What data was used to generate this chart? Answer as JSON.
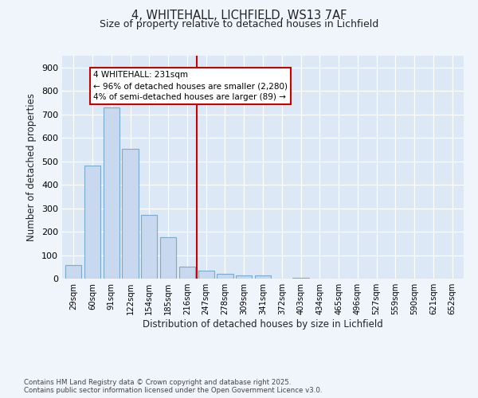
{
  "title1": "4, WHITEHALL, LICHFIELD, WS13 7AF",
  "title2": "Size of property relative to detached houses in Lichfield",
  "xlabel": "Distribution of detached houses by size in Lichfield",
  "ylabel": "Number of detached properties",
  "bar_labels": [
    "29sqm",
    "60sqm",
    "91sqm",
    "122sqm",
    "154sqm",
    "185sqm",
    "216sqm",
    "247sqm",
    "278sqm",
    "309sqm",
    "341sqm",
    "372sqm",
    "403sqm",
    "434sqm",
    "465sqm",
    "496sqm",
    "527sqm",
    "559sqm",
    "590sqm",
    "621sqm",
    "652sqm"
  ],
  "bar_values": [
    57,
    483,
    728,
    554,
    272,
    175,
    50,
    33,
    20,
    13,
    13,
    0,
    5,
    0,
    0,
    0,
    0,
    0,
    0,
    0,
    0
  ],
  "bar_color": "#c8d8ee",
  "bar_edgecolor": "#7aaad0",
  "vline_x": 6.5,
  "vline_color": "#cc0000",
  "annotation_title": "4 WHITEHALL: 231sqm",
  "annotation_line1": "← 96% of detached houses are smaller (2,280)",
  "annotation_line2": "4% of semi-detached houses are larger (89) →",
  "annotation_box_facecolor": "#ffffff",
  "annotation_box_edgecolor": "#cc0000",
  "ylim": [
    0,
    950
  ],
  "yticks": [
    0,
    100,
    200,
    300,
    400,
    500,
    600,
    700,
    800,
    900
  ],
  "plot_bg_color": "#dce8f5",
  "fig_bg_color": "#f0f4fb",
  "grid_color": "#ffffff",
  "footer1": "Contains HM Land Registry data © Crown copyright and database right 2025.",
  "footer2": "Contains public sector information licensed under the Open Government Licence v3.0."
}
